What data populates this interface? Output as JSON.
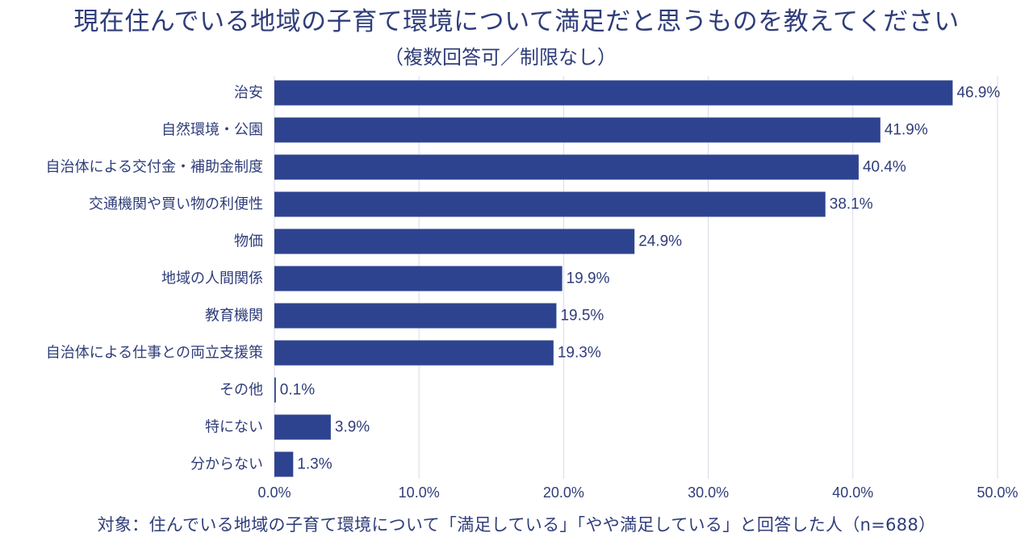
{
  "title": "現在住んでいる地域の子育て環境について満足だと思うものを教えてください",
  "subtitle": "（複数回答可／制限なし）",
  "footnote": "対象：住んでいる地域の子育て環境について「満足している」「やや満足している」と回答した人（n=688）",
  "colors": {
    "bar": "#2e4390",
    "text": "#2f3d7a",
    "grid": "#d8dbe8"
  },
  "chart_data": {
    "type": "bar",
    "orientation": "horizontal",
    "categories": [
      "治安",
      "自然環境・公園",
      "自治体による交付金・補助金制度",
      "交通機関や買い物の利便性",
      "物価",
      "地域の人間関係",
      "教育機関",
      "自治体による仕事との両立支援策",
      "その他",
      "特にない",
      "分からない"
    ],
    "values": [
      46.9,
      41.9,
      40.4,
      38.1,
      24.9,
      19.9,
      19.5,
      19.3,
      0.1,
      3.9,
      1.3
    ],
    "value_labels": [
      "46.9%",
      "41.9%",
      "40.4%",
      "38.1%",
      "24.9%",
      "19.9%",
      "19.5%",
      "19.3%",
      "0.1%",
      "3.9%",
      "1.3%"
    ],
    "x_ticks": [
      0,
      10,
      20,
      30,
      40,
      50
    ],
    "x_tick_labels": [
      "0.0%",
      "10.0%",
      "20.0%",
      "30.0%",
      "40.0%",
      "50.0%"
    ],
    "xlim": [
      0,
      50
    ],
    "xlabel": "",
    "ylabel": "",
    "grid": true,
    "legend": "none"
  }
}
